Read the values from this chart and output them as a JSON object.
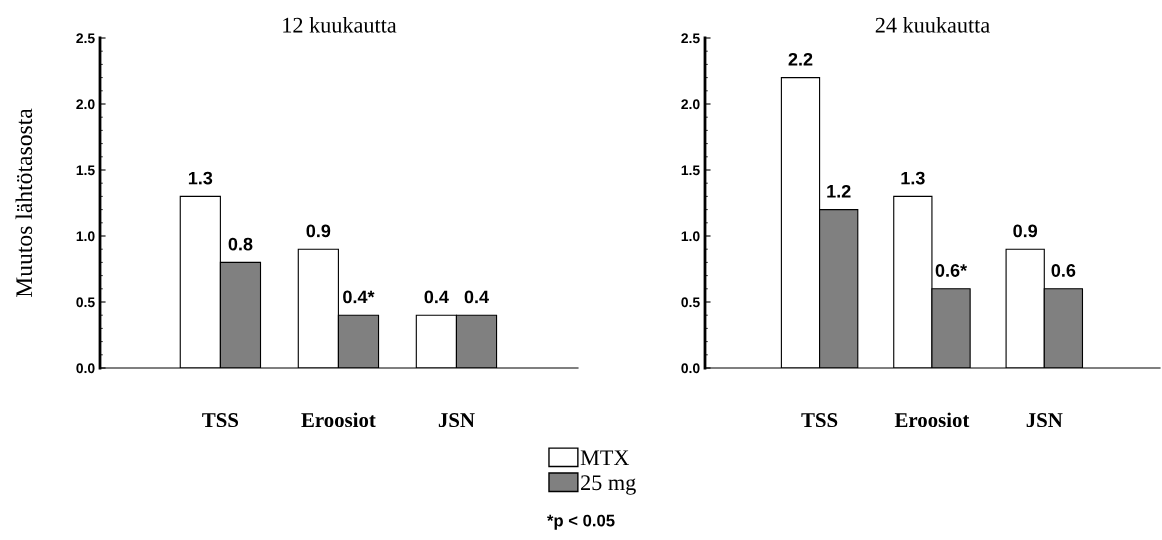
{
  "chart_data": [
    {
      "type": "bar",
      "title": "12 kuukautta",
      "ylabel": "Muutos lähtötasosta",
      "categories": [
        "TSS",
        "Eroosiot",
        "JSN"
      ],
      "series": [
        {
          "name": "MTX",
          "color": "#ffffff",
          "values": [
            1.3,
            0.9,
            0.4
          ],
          "value_labels": [
            "1.3",
            "0.9",
            "0.4"
          ]
        },
        {
          "name": "25 mg",
          "color": "#808080",
          "values": [
            0.8,
            0.4,
            0.4
          ],
          "value_labels": [
            "0.8",
            "0.4*",
            "0.4"
          ]
        }
      ],
      "ylim": [
        0,
        2.5
      ],
      "yticks": [
        {
          "value": 0,
          "label": "0.0"
        },
        {
          "value": 0.5,
          "label": "0.5"
        },
        {
          "value": 1,
          "label": "1.0"
        },
        {
          "value": 1.5,
          "label": "1.5"
        },
        {
          "value": 2,
          "label": "2.0"
        },
        {
          "value": 2.5,
          "label": "2.5"
        }
      ],
      "grid": false,
      "legend": "bottom",
      "annotations": [
        "*p < 0.05"
      ]
    },
    {
      "type": "bar",
      "title": "24 kuukautta",
      "categories": [
        "TSS",
        "Eroosiot",
        "JSN"
      ],
      "series": [
        {
          "color": "#ffffff",
          "values": [
            2.2,
            1.3,
            0.9
          ],
          "value_labels": [
            "2.2",
            "1.3",
            "0.9"
          ]
        },
        {
          "color": "#808080",
          "values": [
            1.2,
            0.6,
            0.6
          ],
          "value_labels": [
            "1.2",
            "0.6*",
            "0.6"
          ]
        }
      ],
      "ylim": [
        0,
        2.5
      ],
      "yticks": [
        {
          "value": 0,
          "label": "0.0"
        },
        {
          "value": 0.5,
          "label": "0.5"
        },
        {
          "value": 1,
          "label": "1.0"
        },
        {
          "value": 1.5,
          "label": "1.5"
        },
        {
          "value": 2,
          "label": "2.0"
        },
        {
          "value": 2.5,
          "label": "2.5"
        }
      ],
      "grid": false
    }
  ]
}
